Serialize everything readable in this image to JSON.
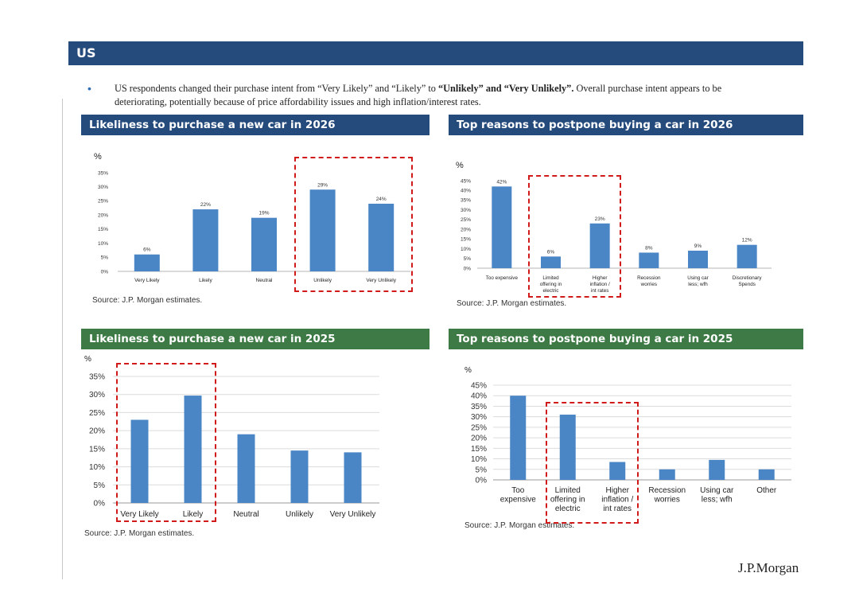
{
  "header": {
    "title": "US"
  },
  "bullet": {
    "part1": "US respondents changed their purchase intent from “Very Likely” and “Likely” to ",
    "bold": "“Unlikely” and “Very Unlikely”.",
    "part2": " Overall purchase intent appears to be deteriorating, potentially because of price affordability issues and high inflation/interest rates."
  },
  "panels": {
    "p2026_intent": "Likeliness to purchase a new car in 2026",
    "p2026_reasons": "Top reasons to postpone buying a car in 2026",
    "p2025_intent": "Likeliness to purchase a new car in 2025",
    "p2025_reasons": "Top reasons to postpone buying a car in 2025"
  },
  "sources": {
    "s1": "Source: J.P. Morgan estimates.",
    "s2": "Source: J.P. Morgan estimates.",
    "s3": "Source: J.P. Morgan estimates.",
    "s4": "Source: J.P. Morgan estimates."
  },
  "brand": "J.P.Morgan",
  "colors": {
    "bar": "#4a86c5",
    "header_blue": "#254a7c",
    "header_green": "#3d7a45",
    "highlight": "#d11a1a"
  },
  "chart_data": [
    {
      "id": "c1",
      "type": "bar",
      "ylabel": "%",
      "ylim": [
        0,
        35
      ],
      "yticks": [
        "0%",
        "5%",
        "10%",
        "15%",
        "20%",
        "25%",
        "30%",
        "35%"
      ],
      "categories": [
        "Very Likely",
        "Likely",
        "Neutral",
        "Unlikely",
        "Very Unlikely"
      ],
      "values": [
        6,
        22,
        19,
        29,
        24
      ],
      "data_labels": [
        "6%",
        "22%",
        "19%",
        "29%",
        "24%"
      ],
      "grid": false
    },
    {
      "id": "c2",
      "type": "bar",
      "ylabel": "%",
      "ylim": [
        0,
        45
      ],
      "yticks": [
        "0%",
        "5%",
        "10%",
        "15%",
        "20%",
        "25%",
        "30%",
        "35%",
        "40%",
        "45%"
      ],
      "categories": [
        "Too expensive",
        "Limited offering in electric",
        "Higher inflation / int rates",
        "Recession worries",
        "Using car less; wfh",
        "Discretionary Spends"
      ],
      "values": [
        42,
        6,
        23,
        8,
        9,
        12
      ],
      "data_labels": [
        "42%",
        "6%",
        "23%",
        "8%",
        "9%",
        "12%"
      ],
      "grid": false
    },
    {
      "id": "c3",
      "type": "bar",
      "ylabel": "%",
      "ylim": [
        0,
        35
      ],
      "yticks": [
        "0%",
        "5%",
        "10%",
        "15%",
        "20%",
        "25%",
        "30%",
        "35%"
      ],
      "categories": [
        "Very Likely",
        "Likely",
        "Neutral",
        "Unlikely",
        "Very Unlikely"
      ],
      "values": [
        23,
        29.7,
        19,
        14.5,
        14
      ],
      "grid": true
    },
    {
      "id": "c4",
      "type": "bar",
      "ylabel": "%",
      "ylim": [
        0,
        45
      ],
      "yticks": [
        "0%",
        "5%",
        "10%",
        "15%",
        "20%",
        "25%",
        "30%",
        "35%",
        "40%",
        "45%"
      ],
      "categories": [
        "Too expensive",
        "Limited offering in electric",
        "Higher inflation / int rates",
        "Recession worries",
        "Using car less; wfh",
        "Other"
      ],
      "values": [
        40,
        31,
        8.5,
        5,
        9.5,
        5
      ],
      "grid": true
    }
  ]
}
